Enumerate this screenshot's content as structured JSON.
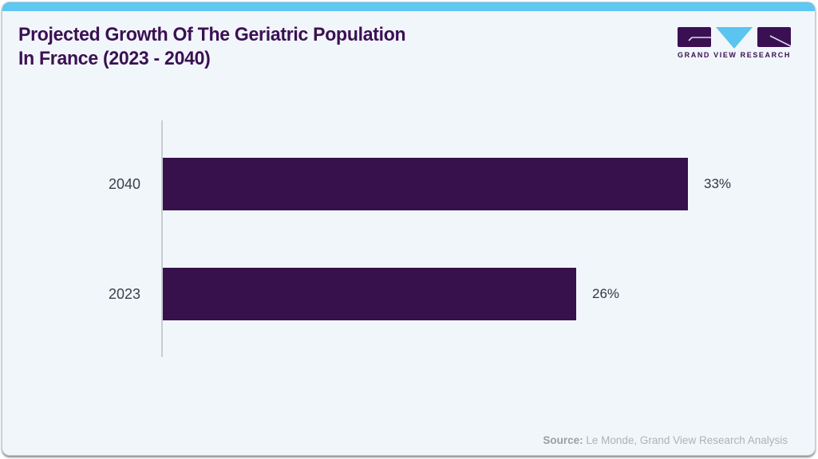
{
  "header": {
    "title_line1": "Projected Growth Of The Geriatric Population",
    "title_line2": "In France (2023 - 2040)",
    "logo_text": "GRAND VIEW RESEARCH"
  },
  "chart_data": {
    "type": "bar",
    "orientation": "horizontal",
    "title": "Projected Growth Of The Geriatric Population In France (2023 - 2040)",
    "categories": [
      "2040",
      "2023"
    ],
    "values": [
      33,
      26
    ],
    "value_labels": [
      "33%",
      "26%"
    ],
    "unit": "%",
    "xlim": [
      0,
      33
    ],
    "grid": false,
    "legend": false,
    "bar_color": "#36114b"
  },
  "footer": {
    "source_label": "Source:",
    "source_value": "Le Monde, Grand View Research Analysis"
  },
  "colors": {
    "accent_bar": "#5ec7f2",
    "title": "#3b1053",
    "bar": "#36114b",
    "card_background": "#f1f6fa",
    "logo_triangle": "#5bc4ef"
  }
}
